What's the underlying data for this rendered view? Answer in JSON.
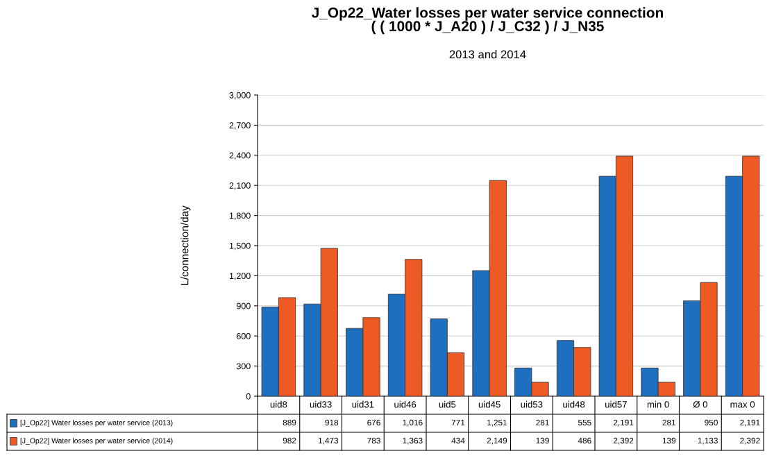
{
  "chart_data": {
    "type": "bar",
    "title": "J_Op22_Water losses per water service connection\n( ( 1000 * J_A20 ) / J_C32 ) / J_N35",
    "subtitle": "2013 and 2014",
    "ylabel": "L/connection/day",
    "categories": [
      "uid8",
      "uid33",
      "uid31",
      "uid46",
      "uid5",
      "uid45",
      "uid53",
      "uid48",
      "uid57",
      "min 0",
      "Ø 0",
      "max 0"
    ],
    "series": [
      {
        "name": "[J_Op22] Water losses per water service (2013)",
        "color": "#1f6fc0",
        "values": [
          889,
          918,
          676,
          1016,
          771,
          1251,
          281,
          555,
          2191,
          281,
          950,
          2191
        ],
        "value_labels": [
          "889",
          "918",
          "676",
          "1,016",
          "771",
          "1,251",
          "281",
          "555",
          "2,191",
          "281",
          "950",
          "2,191"
        ]
      },
      {
        "name": "[J_Op22] Water losses per water service (2014)",
        "color": "#ee5a24",
        "values": [
          982,
          1473,
          783,
          1363,
          434,
          2149,
          139,
          486,
          2392,
          139,
          1133,
          2392
        ],
        "value_labels": [
          "982",
          "1,473",
          "783",
          "1,363",
          "434",
          "2,149",
          "139",
          "486",
          "2,392",
          "139",
          "1,133",
          "2,392"
        ]
      }
    ],
    "ylim": [
      0,
      3000
    ],
    "yticks": [
      0,
      300,
      600,
      900,
      {
        "value": 1200,
        "label": "1,200"
      },
      {
        "value": 1500,
        "label": "1,500"
      },
      {
        "value": 1800,
        "label": "1,800"
      },
      {
        "value": 2100,
        "label": "2,100"
      },
      {
        "value": 2400,
        "label": "2,400"
      },
      {
        "value": 2700,
        "label": "2,700"
      },
      {
        "value": 3000,
        "label": "3,000"
      }
    ],
    "grid": "y",
    "legend": "bottom"
  }
}
